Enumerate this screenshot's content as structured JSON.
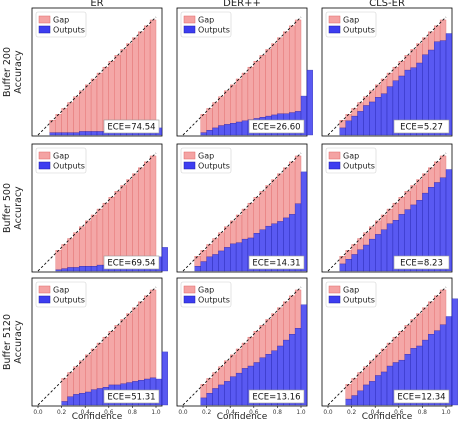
{
  "labels": {
    "columns": [
      "ER",
      "DER++",
      "CLS-ER"
    ],
    "rows": [
      "Buffer 200",
      "Buffer 500",
      "Buffer 5120"
    ],
    "y_axis": "Accuracy",
    "x_axis": "Confidence",
    "legend": {
      "gap": "Gap",
      "outputs": "Outputs"
    }
  },
  "colors": {
    "gap_fill": "#f4a3a3",
    "gap_edge": "#e06767",
    "outputs_fill": "#3d3df0",
    "outputs_edge": "#1a1aa8",
    "diagonal": "#111111"
  },
  "chart_data": {
    "type": "bar",
    "description_of_axes": "reliability diagrams, 20 confidence bins",
    "xlim": [
      0,
      1
    ],
    "ylim": [
      0,
      1
    ],
    "x_ticks": [
      "0.0",
      "0.2",
      "0.4",
      "0.6",
      "0.8",
      "1.0"
    ],
    "bin_confidence": [
      0.025,
      0.075,
      0.125,
      0.175,
      0.225,
      0.275,
      0.325,
      0.375,
      0.425,
      0.475,
      0.525,
      0.575,
      0.625,
      0.675,
      0.725,
      0.775,
      0.825,
      0.875,
      0.925,
      0.975
    ],
    "panels": [
      {
        "row": 0,
        "col": 0,
        "ece_label": "ECE=74.54",
        "first_bin": 2,
        "outputs": [
          0.02,
          0.02,
          0.02,
          0.02,
          0.02,
          0.03,
          0.03,
          0.03,
          0.03,
          0.03,
          0.03,
          0.03,
          0.04,
          0.04,
          0.04,
          0.05,
          0.05,
          0.06,
          0.06
        ]
      },
      {
        "row": 0,
        "col": 1,
        "ece_label": "ECE=26.60",
        "first_bin": 3,
        "outputs": [
          0.02,
          0.04,
          0.06,
          0.08,
          0.09,
          0.1,
          0.11,
          0.12,
          0.13,
          0.14,
          0.15,
          0.16,
          0.17,
          0.18,
          0.18,
          0.19,
          0.2,
          0.33,
          0.55
        ]
      },
      {
        "row": 0,
        "col": 2,
        "ece_label": "ECE=5.27",
        "first_bin": 2,
        "outputs": [
          0.06,
          0.12,
          0.16,
          0.2,
          0.25,
          0.28,
          0.32,
          0.35,
          0.41,
          0.46,
          0.5,
          0.55,
          0.57,
          0.61,
          0.68,
          0.72,
          0.79,
          0.8,
          0.86
        ]
      },
      {
        "row": 1,
        "col": 0,
        "ece_label": "ECE=69.54",
        "first_bin": 3,
        "outputs": [
          0.01,
          0.02,
          0.03,
          0.03,
          0.04,
          0.04,
          0.04,
          0.05,
          0.05,
          0.05,
          0.05,
          0.06,
          0.06,
          0.07,
          0.07,
          0.08,
          0.09,
          0.12,
          0.2
        ]
      },
      {
        "row": 1,
        "col": 1,
        "ece_label": "ECE=14.31",
        "first_bin": 2,
        "outputs": [
          0.04,
          0.08,
          0.12,
          0.14,
          0.17,
          0.2,
          0.23,
          0.24,
          0.27,
          0.28,
          0.32,
          0.35,
          0.38,
          0.4,
          0.42,
          0.45,
          0.48,
          0.57,
          0.84
        ]
      },
      {
        "row": 1,
        "col": 2,
        "ece_label": "ECE=8.23",
        "first_bin": 2,
        "outputs": [
          0.06,
          0.1,
          0.14,
          0.18,
          0.22,
          0.27,
          0.31,
          0.35,
          0.4,
          0.43,
          0.48,
          0.52,
          0.56,
          0.6,
          0.66,
          0.71,
          0.75,
          0.79,
          0.86
        ]
      },
      {
        "row": 2,
        "col": 0,
        "ece_label": "ECE=51.31",
        "first_bin": 4,
        "outputs": [
          0.03,
          0.07,
          0.09,
          0.1,
          0.11,
          0.13,
          0.14,
          0.15,
          0.17,
          0.17,
          0.18,
          0.19,
          0.2,
          0.21,
          0.22,
          0.23,
          0.22,
          0.45
        ]
      },
      {
        "row": 2,
        "col": 1,
        "ece_label": "ECE=13.16",
        "first_bin": 3,
        "outputs": [
          0.06,
          0.1,
          0.14,
          0.17,
          0.2,
          0.24,
          0.27,
          0.31,
          0.33,
          0.36,
          0.4,
          0.43,
          0.46,
          0.5,
          0.55,
          0.6,
          0.65,
          0.85
        ]
      },
      {
        "row": 2,
        "col": 2,
        "ece_label": "ECE=12.34",
        "first_bin": 3,
        "outputs": [
          0.05,
          0.08,
          0.12,
          0.17,
          0.2,
          0.25,
          0.28,
          0.33,
          0.36,
          0.38,
          0.43,
          0.48,
          0.5,
          0.55,
          0.6,
          0.63,
          0.68,
          0.75,
          0.9
        ]
      }
    ]
  }
}
